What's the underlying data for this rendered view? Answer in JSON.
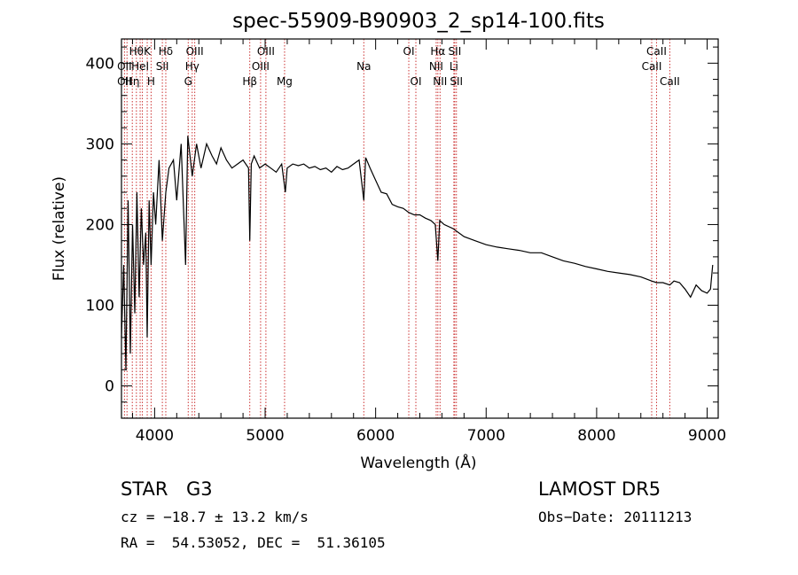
{
  "chart_data": {
    "type": "line",
    "title": "spec-55909-B90903_2_sp14-100.fits",
    "xlabel": "Wavelength (Å)",
    "ylabel": "Flux (relative)",
    "xlim": [
      3700,
      9100
    ],
    "ylim": [
      -40,
      430
    ],
    "xticks": [
      4000,
      5000,
      6000,
      7000,
      8000,
      9000
    ],
    "yticks": [
      0,
      100,
      200,
      300,
      400
    ],
    "grid": false,
    "series": [
      {
        "x": [
          3700,
          3720,
          3740,
          3760,
          3780,
          3800,
          3820,
          3840,
          3860,
          3880,
          3900,
          3920,
          3933,
          3950,
          3968,
          3990,
          4010,
          4040,
          4070,
          4101,
          4130,
          4170,
          4200,
          4240,
          4280,
          4300,
          4340,
          4380,
          4420,
          4470,
          4520,
          4560,
          4600,
          4650,
          4700,
          4750,
          4800,
          4850,
          4861,
          4875,
          4900,
          4950,
          5000,
          5050,
          5100,
          5150,
          5183,
          5200,
          5250,
          5300,
          5350,
          5400,
          5450,
          5500,
          5550,
          5600,
          5650,
          5700,
          5750,
          5800,
          5850,
          5893,
          5910,
          5950,
          6000,
          6050,
          6100,
          6150,
          6200,
          6250,
          6300,
          6350,
          6400,
          6450,
          6500,
          6540,
          6563,
          6580,
          6620,
          6700,
          6800,
          6900,
          7000,
          7100,
          7200,
          7300,
          7400,
          7500,
          7600,
          7700,
          7800,
          7900,
          8000,
          8100,
          8200,
          8300,
          8400,
          8498,
          8542,
          8600,
          8662,
          8700,
          8750,
          8800,
          8850,
          8900,
          8950,
          9000,
          9030,
          9050
        ],
        "y": [
          60,
          150,
          20,
          230,
          40,
          200,
          90,
          240,
          110,
          220,
          150,
          190,
          60,
          230,
          150,
          240,
          200,
          280,
          180,
          240,
          270,
          280,
          230,
          300,
          150,
          310,
          260,
          300,
          270,
          300,
          285,
          275,
          295,
          280,
          270,
          275,
          280,
          270,
          180,
          275,
          285,
          270,
          275,
          270,
          265,
          275,
          240,
          270,
          275,
          273,
          275,
          270,
          272,
          268,
          270,
          265,
          272,
          268,
          270,
          275,
          280,
          230,
          283,
          270,
          255,
          240,
          238,
          225,
          222,
          220,
          215,
          212,
          212,
          208,
          205,
          200,
          155,
          205,
          200,
          195,
          185,
          180,
          175,
          172,
          170,
          168,
          165,
          165,
          160,
          155,
          152,
          148,
          145,
          142,
          140,
          138,
          135,
          130,
          128,
          128,
          125,
          130,
          128,
          120,
          110,
          125,
          118,
          115,
          120,
          150
        ]
      }
    ],
    "lines": [
      {
        "x": 3727,
        "labels": [
          "OII"
        ]
      },
      {
        "x": 3750,
        "labels": [
          "OII"
        ]
      },
      {
        "x": 3798,
        "labels": [
          "Hη"
        ]
      },
      {
        "x": 3835,
        "labels": [
          "Hθ"
        ]
      },
      {
        "x": 3869,
        "labels": [
          "HeI"
        ]
      },
      {
        "x": 3889,
        "labels": [
          "Hη"
        ]
      },
      {
        "x": 3933,
        "labels": [
          "K"
        ]
      },
      {
        "x": 3968,
        "labels": [
          "H"
        ]
      },
      {
        "x": 4070,
        "labels": [
          "SII"
        ]
      },
      {
        "x": 4101,
        "labels": [
          "Hδ"
        ]
      },
      {
        "x": 4304,
        "labels": [
          "G"
        ]
      },
      {
        "x": 4340,
        "labels": [
          "Hγ"
        ]
      },
      {
        "x": 4363,
        "labels": [
          "OIII"
        ]
      },
      {
        "x": 4861,
        "labels": [
          "Hβ"
        ]
      },
      {
        "x": 4959,
        "labels": [
          "OIII"
        ]
      },
      {
        "x": 5007,
        "labels": [
          "OIII"
        ]
      },
      {
        "x": 5176,
        "labels": [
          "Mg"
        ]
      },
      {
        "x": 5893,
        "labels": [
          "Na"
        ]
      },
      {
        "x": 6300,
        "labels": [
          "OI"
        ]
      },
      {
        "x": 6364,
        "labels": [
          "OI"
        ]
      },
      {
        "x": 6548,
        "labels": [
          "NII"
        ]
      },
      {
        "x": 6563,
        "labels": [
          "Hα"
        ]
      },
      {
        "x": 6583,
        "labels": [
          "NII"
        ]
      },
      {
        "x": 6708,
        "labels": [
          "Li"
        ]
      },
      {
        "x": 6716,
        "labels": [
          "SII"
        ]
      },
      {
        "x": 6731,
        "labels": [
          "SII"
        ]
      },
      {
        "x": 8498,
        "labels": [
          "CaII"
        ]
      },
      {
        "x": 8542,
        "labels": [
          "CaII"
        ]
      },
      {
        "x": 8662,
        "labels": [
          "CaII"
        ]
      }
    ]
  },
  "label_rows": [
    [
      {
        "x": 3835,
        "text": "Hθ"
      },
      {
        "x": 3933,
        "text": "K"
      },
      {
        "x": 4101,
        "text": "Hδ"
      },
      {
        "x": 4363,
        "text": "OIII"
      },
      {
        "x": 5007,
        "text": "OIII"
      },
      {
        "x": 6300,
        "text": "OI"
      },
      {
        "x": 6563,
        "text": "Hα"
      },
      {
        "x": 6716,
        "text": "SII"
      },
      {
        "x": 8542,
        "text": "CaII"
      }
    ],
    [
      {
        "x": 3727,
        "text": "OII"
      },
      {
        "x": 3869,
        "text": "HeI"
      },
      {
        "x": 4070,
        "text": "SII"
      },
      {
        "x": 4340,
        "text": "Hγ"
      },
      {
        "x": 4959,
        "text": "OIII"
      },
      {
        "x": 5893,
        "text": "Na"
      },
      {
        "x": 6548,
        "text": "NII"
      },
      {
        "x": 6708,
        "text": "Li"
      },
      {
        "x": 8498,
        "text": "CaII"
      }
    ],
    [
      {
        "x": 3727,
        "text": "OII"
      },
      {
        "x": 3798,
        "text": "Hη"
      },
      {
        "x": 3968,
        "text": "H"
      },
      {
        "x": 4304,
        "text": "G"
      },
      {
        "x": 4861,
        "text": "Hβ"
      },
      {
        "x": 5176,
        "text": "Mg"
      },
      {
        "x": 6364,
        "text": "OI"
      },
      {
        "x": 6583,
        "text": "NII"
      },
      {
        "x": 6731,
        "text": "SII"
      },
      {
        "x": 8662,
        "text": "CaII"
      }
    ]
  ],
  "info": {
    "object_class": "STAR",
    "subclass": "G3",
    "survey": "LAMOST DR5",
    "cz": "cz = −18.7 ± 13.2 km/s",
    "obs_date": "Obs−Date: 20111213",
    "coords": "RA =  54.53052, DEC =  51.36105"
  },
  "colors": {
    "line_marker": "#cc3333",
    "spectrum": "#000000",
    "axes": "#000000"
  }
}
